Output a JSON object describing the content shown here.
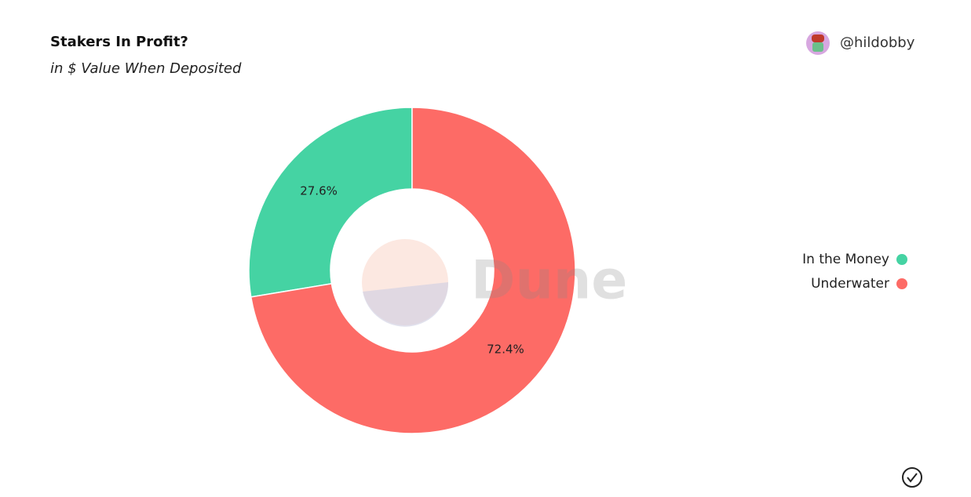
{
  "chart_data": {
    "type": "pie",
    "title": "Stakers In Profit?",
    "subtitle": "in $ Value When Deposited",
    "author": "@hildobby",
    "watermark": "Dune",
    "categories": [
      "In the Money",
      "Underwater"
    ],
    "values": [
      27.6,
      72.4
    ],
    "value_labels": [
      "27.6%",
      "72.4%"
    ],
    "colors": [
      "#45d3a3",
      "#fd6b66"
    ],
    "legend": "right"
  }
}
